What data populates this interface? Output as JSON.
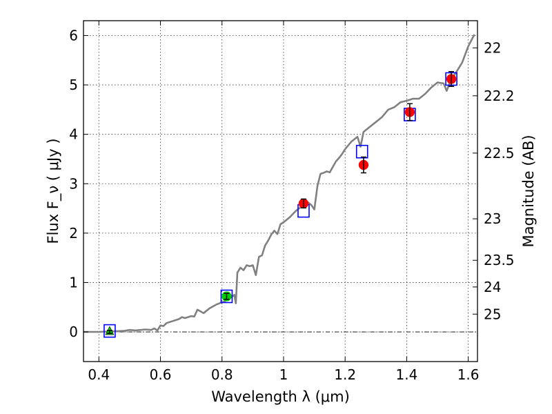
{
  "chart_data": {
    "type": "scatter",
    "xlabel": "Wavelength  λ (μm)",
    "ylabel": "Flux  F_ν  ( μJy )",
    "ylabel_right": "Magnitude (AB)",
    "xlim": [
      0.35,
      1.63
    ],
    "ylim": [
      -0.6,
      6.3
    ],
    "x_ticks": [
      0.4,
      0.6,
      0.8,
      1.0,
      1.2,
      1.4,
      1.6
    ],
    "x_tick_labels": [
      "0.4",
      "0.6",
      "0.8",
      "1",
      "1.2",
      "1.4",
      "1.6"
    ],
    "y_ticks": [
      0,
      1,
      2,
      3,
      4,
      5,
      6
    ],
    "y_tick_labels": [
      "0",
      "1",
      "2",
      "3",
      "4",
      "5",
      "6"
    ],
    "right_ticks": [
      {
        "flux": 5.75,
        "label": "22"
      },
      {
        "flux": 4.78,
        "label": "22.2"
      },
      {
        "flux": 3.62,
        "label": "22.5"
      },
      {
        "flux": 2.29,
        "label": "23"
      },
      {
        "flux": 1.45,
        "label": "23.5"
      },
      {
        "flux": 0.91,
        "label": "24"
      },
      {
        "flux": 0.36,
        "label": "25"
      }
    ],
    "grid": true,
    "zero_line": 0,
    "colors": {
      "model": "#808080",
      "model_points": "#0000ff",
      "observed_red": "#ff0000",
      "observed_green": "#00cc00",
      "errorbar": "#000000"
    },
    "series": [
      {
        "kind": "model_spectrum",
        "x": [
          0.35,
          0.4,
          0.44,
          0.48,
          0.5,
          0.52,
          0.55,
          0.57,
          0.58,
          0.59,
          0.6,
          0.61,
          0.62,
          0.64,
          0.66,
          0.67,
          0.68,
          0.7,
          0.71,
          0.72,
          0.74,
          0.76,
          0.78,
          0.8,
          0.81,
          0.82,
          0.83,
          0.84,
          0.845,
          0.85,
          0.86,
          0.87,
          0.88,
          0.89,
          0.9,
          0.91,
          0.92,
          0.93,
          0.94,
          0.95,
          0.96,
          0.97,
          0.98,
          0.99,
          1.0,
          1.02,
          1.04,
          1.05,
          1.06,
          1.07,
          1.08,
          1.09,
          1.1,
          1.11,
          1.12,
          1.13,
          1.14,
          1.15,
          1.17,
          1.18,
          1.19,
          1.2,
          1.22,
          1.24,
          1.25,
          1.26,
          1.27,
          1.28,
          1.3,
          1.32,
          1.34,
          1.36,
          1.38,
          1.4,
          1.42,
          1.44,
          1.46,
          1.48,
          1.5,
          1.52,
          1.53,
          1.54,
          1.55,
          1.56,
          1.58,
          1.6,
          1.62
        ],
        "y": [
          0.0,
          0.0,
          0.01,
          0.02,
          0.04,
          0.03,
          0.05,
          0.04,
          0.07,
          0.03,
          0.13,
          0.12,
          0.18,
          0.22,
          0.26,
          0.3,
          0.28,
          0.32,
          0.31,
          0.45,
          0.38,
          0.48,
          0.55,
          0.6,
          0.62,
          0.78,
          0.7,
          0.75,
          0.58,
          1.2,
          1.3,
          1.25,
          1.35,
          1.33,
          1.35,
          1.15,
          1.52,
          1.55,
          1.75,
          1.85,
          1.97,
          2.05,
          1.98,
          2.18,
          2.22,
          2.32,
          2.45,
          2.5,
          2.55,
          2.55,
          2.62,
          2.57,
          2.48,
          2.95,
          3.2,
          3.22,
          3.25,
          3.23,
          3.45,
          3.52,
          3.6,
          3.7,
          3.85,
          3.95,
          3.75,
          4.05,
          4.1,
          4.15,
          4.25,
          4.35,
          4.5,
          4.55,
          4.65,
          4.68,
          4.72,
          4.72,
          4.82,
          4.95,
          5.05,
          5.03,
          4.88,
          5.05,
          5.15,
          5.25,
          5.45,
          5.78,
          6.02
        ]
      },
      {
        "kind": "model_photometry",
        "marker": "open-square",
        "x": [
          0.435,
          0.815,
          1.065,
          1.255,
          1.41,
          1.545
        ],
        "y": [
          0.02,
          0.72,
          2.45,
          3.65,
          4.4,
          5.12
        ]
      },
      {
        "kind": "observed",
        "marker": "filled-circle",
        "color_key": "observed_red",
        "x": [
          1.065,
          1.26,
          1.41,
          1.545
        ],
        "y": [
          2.6,
          3.38,
          4.45,
          5.12
        ],
        "yerr": [
          0.09,
          0.16,
          0.17,
          0.15
        ]
      },
      {
        "kind": "observed",
        "marker": "filled-triangle",
        "color_key": "observed_green",
        "x": [
          0.435
        ],
        "y": [
          0.0
        ],
        "yerr": [
          0.03
        ]
      },
      {
        "kind": "observed",
        "marker": "filled-circle",
        "color_key": "observed_green",
        "x": [
          0.815
        ],
        "y": [
          0.72
        ],
        "yerr": [
          0.06
        ]
      }
    ]
  }
}
